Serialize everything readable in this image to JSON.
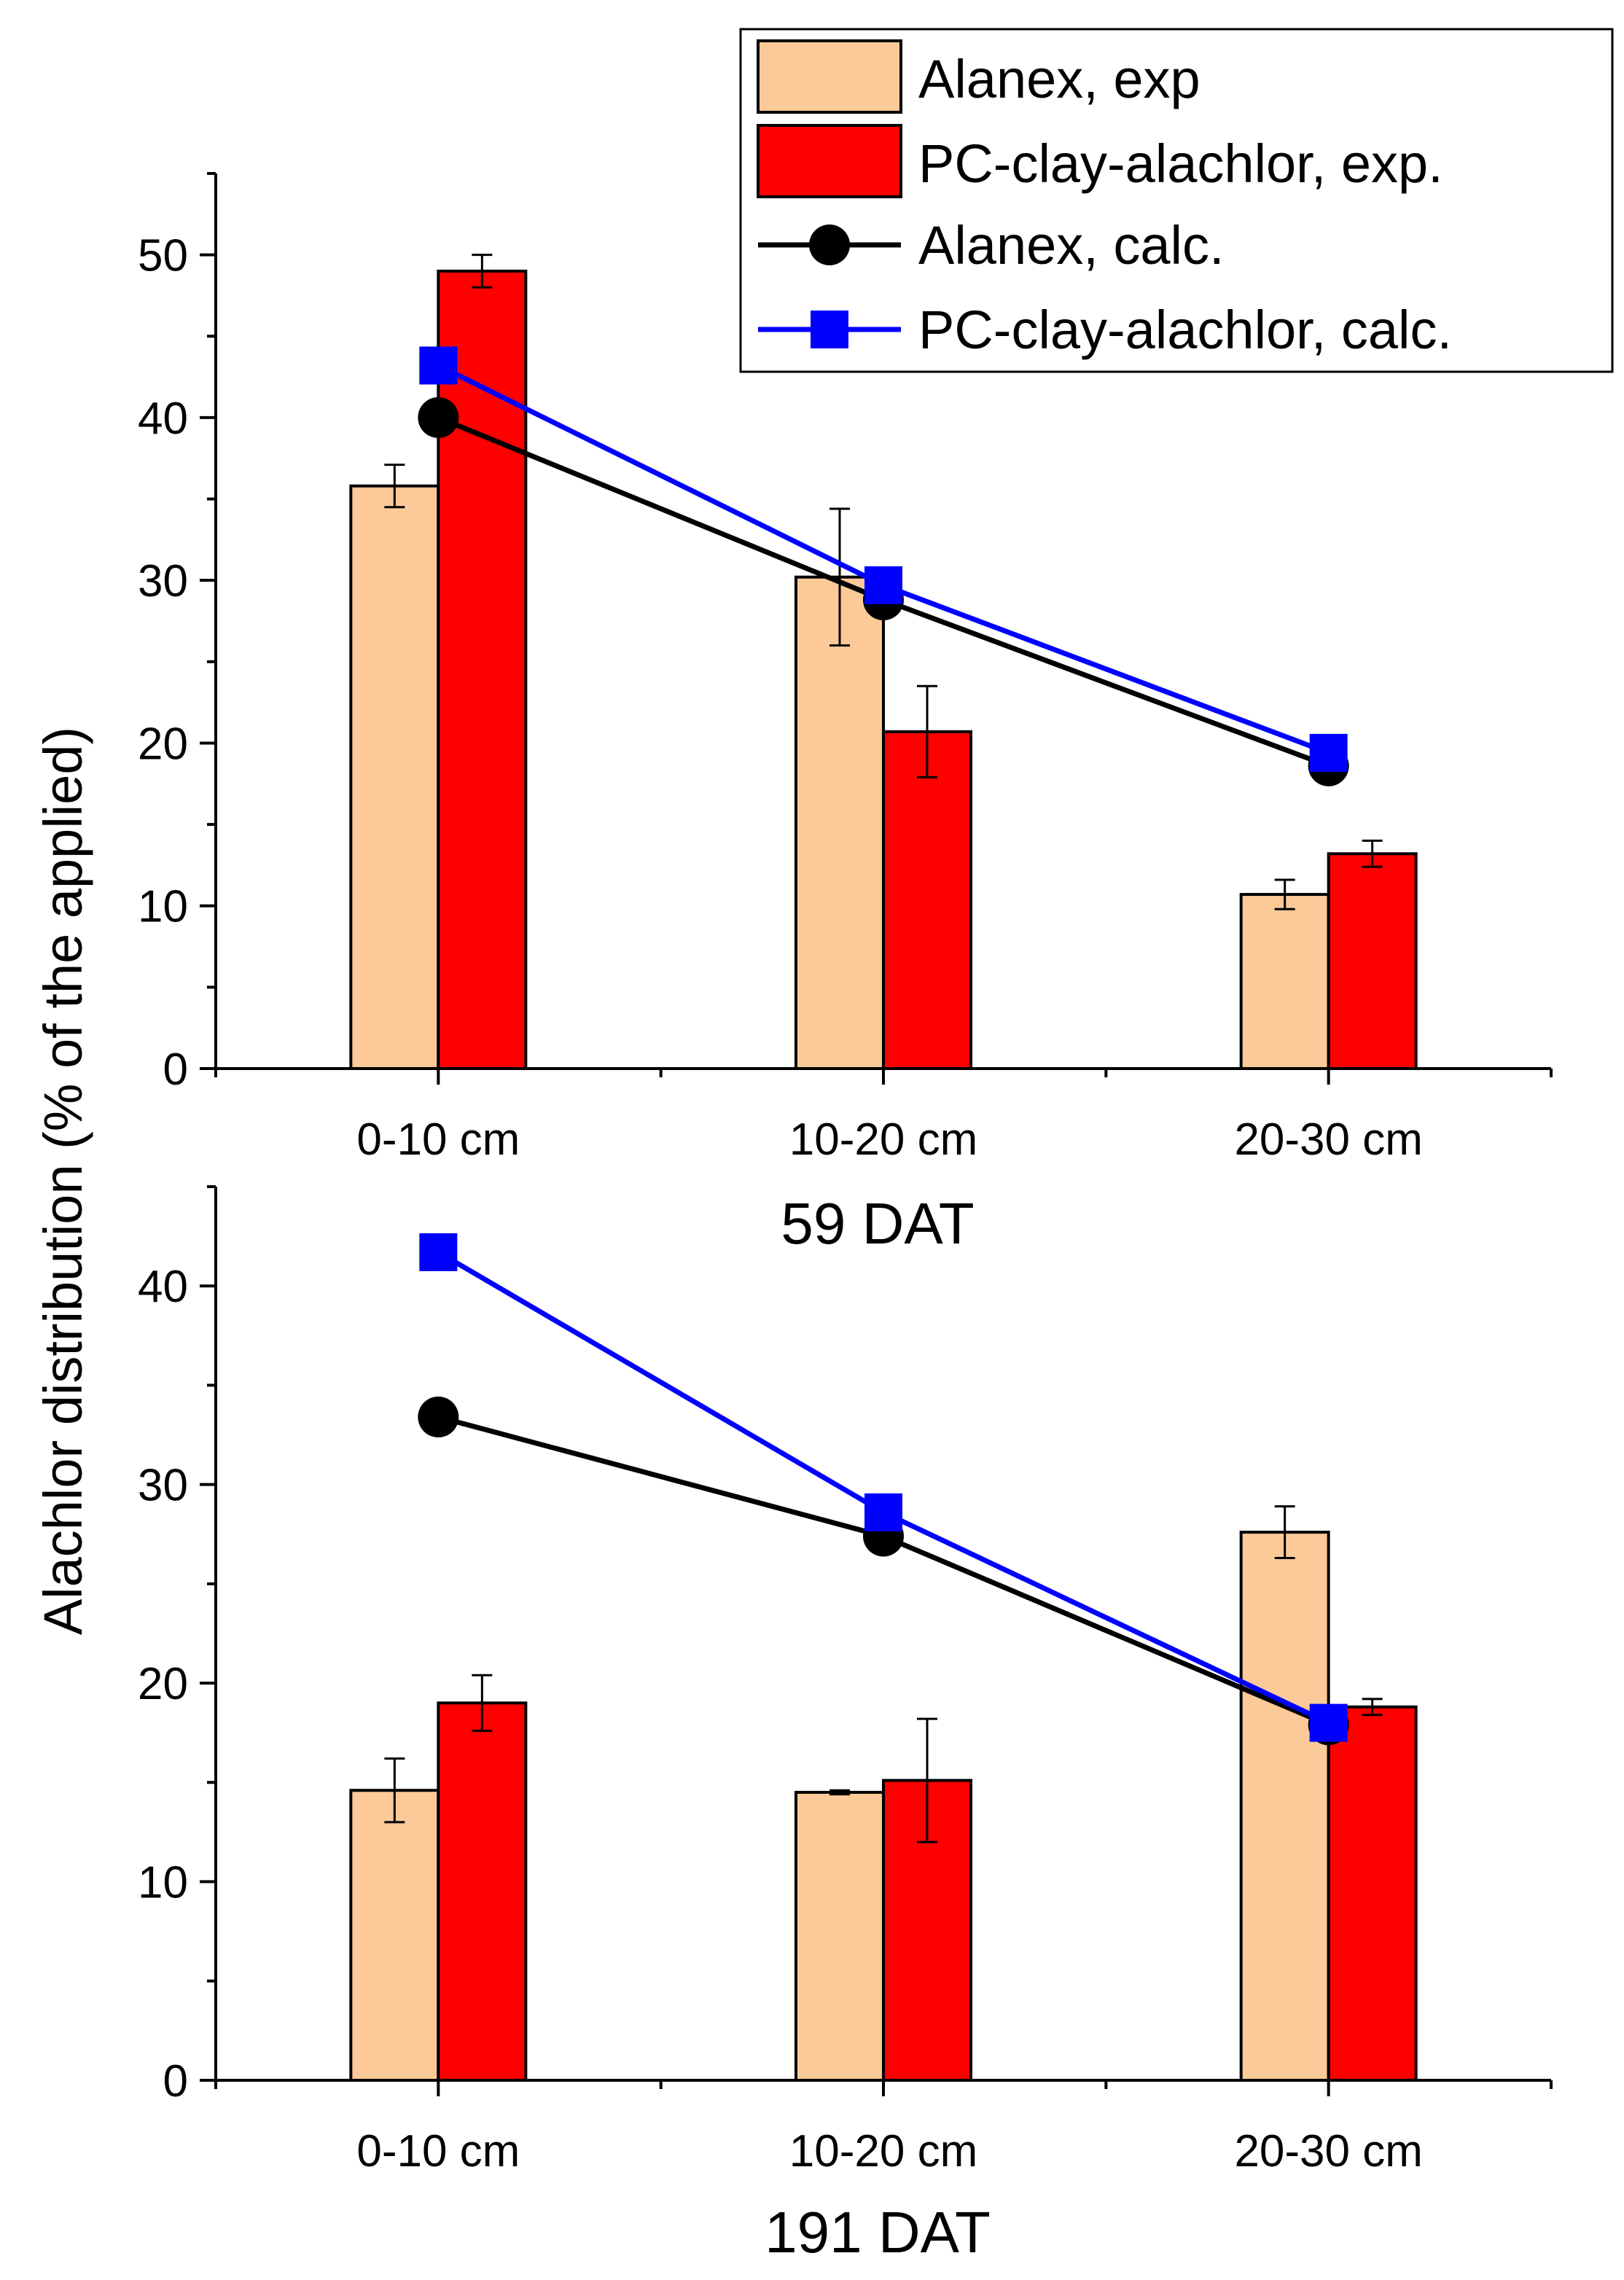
{
  "y_axis_label": "Alachlor distribution (% of the applied)",
  "legend": {
    "entries": [
      {
        "label": "Alanex, exp",
        "kind": "bar",
        "color": "#FCC998"
      },
      {
        "label": "PC-clay-alachlor, exp.",
        "kind": "bar",
        "color": "#FF0000"
      },
      {
        "label": "Alanex, calc.",
        "kind": "line-circle",
        "color": "#000000"
      },
      {
        "label": "PC-clay-alachlor, calc.",
        "kind": "line-square",
        "color": "#0000FF"
      }
    ]
  },
  "chart_data": [
    {
      "type": "bar",
      "title": "59 DAT",
      "xlabel": "59 DAT",
      "ylabel": "Alachlor distribution (% of the applied)",
      "categories": [
        "0-10 cm",
        "10-20 cm",
        "20-30 cm"
      ],
      "ylim": [
        0,
        55
      ],
      "yticks": [
        0,
        10,
        20,
        30,
        40,
        50
      ],
      "series": [
        {
          "name": "Alanex, exp",
          "kind": "bar",
          "color": "#FCC998",
          "values": [
            35.8,
            30.2,
            10.7
          ],
          "errors": [
            1.3,
            4.2,
            0.9
          ]
        },
        {
          "name": "PC-clay-alachlor, exp.",
          "kind": "bar",
          "color": "#FF0000",
          "values": [
            49.0,
            20.7,
            13.2
          ],
          "errors": [
            1.0,
            2.8,
            0.8
          ]
        },
        {
          "name": "Alanex, calc.",
          "kind": "line",
          "marker": "circle",
          "color": "#000000",
          "values": [
            40.0,
            28.8,
            18.6
          ]
        },
        {
          "name": "PC-clay-alachlor, calc.",
          "kind": "line",
          "marker": "square",
          "color": "#0000FF",
          "values": [
            43.2,
            29.7,
            19.4
          ]
        }
      ]
    },
    {
      "type": "bar",
      "title": "191 DAT",
      "xlabel": "191 DAT",
      "ylabel": "Alachlor distribution (% of the applied)",
      "categories": [
        "0-10 cm",
        "10-20 cm",
        "20-30 cm"
      ],
      "ylim": [
        0,
        45
      ],
      "yticks": [
        0,
        10,
        20,
        30,
        40
      ],
      "series": [
        {
          "name": "Alanex, exp",
          "kind": "bar",
          "color": "#FCC998",
          "values": [
            14.6,
            14.5,
            27.6
          ],
          "errors": [
            1.6,
            0.1,
            1.3
          ]
        },
        {
          "name": "PC-clay-alachlor, exp.",
          "kind": "bar",
          "color": "#FF0000",
          "values": [
            19.0,
            15.1,
            18.8
          ],
          "errors": [
            1.4,
            3.1,
            0.4
          ]
        },
        {
          "name": "Alanex, calc.",
          "kind": "line",
          "marker": "circle",
          "color": "#000000",
          "values": [
            33.4,
            27.4,
            17.9
          ]
        },
        {
          "name": "PC-clay-alachlor, calc.",
          "kind": "line",
          "marker": "square",
          "color": "#0000FF",
          "values": [
            41.7,
            28.6,
            18.0
          ]
        }
      ]
    }
  ]
}
